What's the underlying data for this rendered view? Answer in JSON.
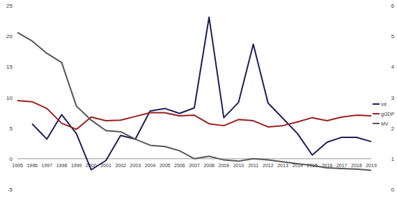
{
  "chart_data": {
    "type": "line",
    "categories": [
      "1995",
      "1996",
      "1997",
      "1998",
      "1999",
      "2000",
      "2001",
      "2002",
      "2003",
      "2004",
      "2005",
      "2006",
      "2007",
      "2008",
      "2009",
      "2010",
      "2011",
      "2012",
      "2013",
      "2014",
      "2015",
      "2016",
      "2017",
      "2018",
      "2019"
    ],
    "series": [
      {
        "name": "Inf",
        "color": "#1c1c5c",
        "values": [
          null,
          5.7,
          3.2,
          7.2,
          4.1,
          -1.8,
          -0.3,
          3.8,
          3.2,
          7.8,
          8.2,
          7.4,
          8.3,
          23.1,
          6.7,
          9.2,
          18.7,
          9.1,
          6.6,
          4.1,
          0.6,
          2.7,
          3.5,
          3.5,
          2.8
        ]
      },
      {
        "name": "gGDP",
        "color": "#9b1c1c",
        "values": [
          9.5,
          9.3,
          8.2,
          5.8,
          4.8,
          6.8,
          6.2,
          6.3,
          6.9,
          7.5,
          7.5,
          7.0,
          7.1,
          5.7,
          5.4,
          6.4,
          6.2,
          5.2,
          5.4,
          6.0,
          6.7,
          6.2,
          6.8,
          7.1,
          7.0
        ]
      },
      {
        "name": "MV",
        "color": "#555555",
        "axis": "y2",
        "values": [
          5.12,
          4.84,
          4.44,
          4.14,
          2.72,
          2.26,
          1.92,
          1.88,
          1.64,
          1.44,
          1.4,
          1.26,
          1.0,
          1.08,
          0.96,
          0.92,
          1.0,
          0.96,
          0.9,
          0.84,
          0.78,
          0.7,
          0.68,
          0.66,
          0.62
        ]
      }
    ],
    "ylim": [
      -5,
      25
    ],
    "yticks": [
      -5,
      0,
      5,
      10,
      15,
      20,
      25
    ],
    "y2lim": [
      0,
      6
    ],
    "y2ticks": [
      0,
      1,
      2,
      3,
      4,
      5,
      6
    ],
    "grid": false,
    "legend": "right"
  }
}
